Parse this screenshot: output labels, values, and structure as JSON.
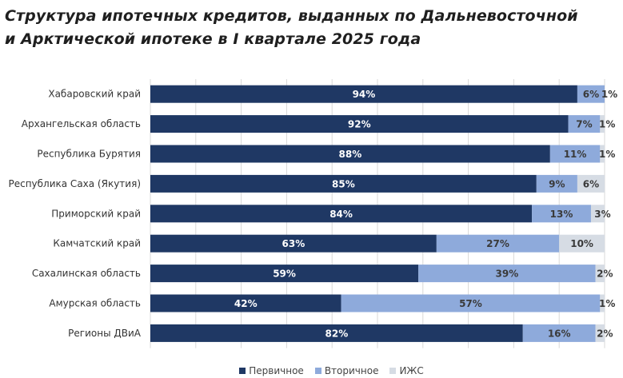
{
  "title_lines": [
    "Структура ипотечных кредитов, выданных по Дальневосточной",
    "и Арктической ипотеке в I квартале 2025 года"
  ],
  "chart_data": {
    "type": "bar",
    "orientation": "horizontal",
    "stacked": "percent",
    "categories": [
      "Хабаровский край",
      "Архангельская область",
      "Республика Бурятия",
      "Республика Саха (Якутия)",
      "Приморский край",
      "Камчатский край",
      "Сахалинская область",
      "Амурская область",
      "Регионы ДВиА"
    ],
    "series": [
      {
        "name": "Первичное",
        "color": "#1f3864",
        "label_color": "#ffffff",
        "values": [
          94,
          92,
          88,
          85,
          84,
          63,
          59,
          42,
          82
        ]
      },
      {
        "name": "Вторичное",
        "color": "#8eaadb",
        "label_color": "#3a3a3a",
        "values": [
          6,
          7,
          11,
          9,
          13,
          27,
          39,
          57,
          16
        ]
      },
      {
        "name": "ИЖС",
        "color": "#d6dce4",
        "label_color": "#3a3a3a",
        "values": [
          1,
          1,
          1,
          6,
          3,
          10,
          2,
          1,
          2
        ]
      }
    ],
    "xlim": [
      0,
      100
    ],
    "grid": true,
    "legend": "bottom"
  }
}
